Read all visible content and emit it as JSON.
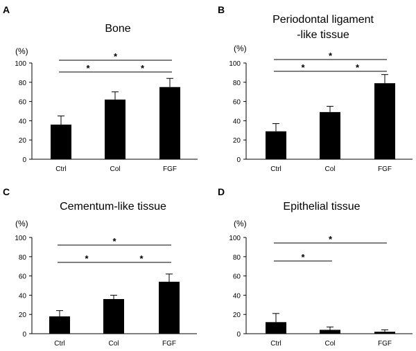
{
  "figure": {
    "panels": [
      {
        "letter": "A",
        "title_lines": [
          "Bone"
        ],
        "unit": "(%)"
      },
      {
        "letter": "B",
        "title_lines": [
          "Periodontal ligament",
          "-like tissue"
        ],
        "unit": "(%)"
      },
      {
        "letter": "C",
        "title_lines": [
          "Cementum-like tissue"
        ],
        "unit": "(%)"
      },
      {
        "letter": "D",
        "title_lines": [
          "Epithelial tissue"
        ],
        "unit": "(%)"
      }
    ]
  },
  "chart_data": [
    {
      "type": "bar",
      "title": "Bone",
      "ylabel": "(%)",
      "categories": [
        "Ctrl",
        "Col",
        "FGF"
      ],
      "values": [
        36,
        62,
        75
      ],
      "errors": [
        9,
        8,
        9
      ],
      "ylim": [
        0,
        100
      ],
      "yticks": [
        "0",
        "20",
        "40",
        "60",
        "80",
        "100"
      ],
      "significance": [
        {
          "from": 0,
          "to": 1,
          "label": "*"
        },
        {
          "from": 1,
          "to": 2,
          "label": "*"
        },
        {
          "from": 0,
          "to": 2,
          "label": "*"
        }
      ],
      "bar_color": "#000000",
      "grid": false
    },
    {
      "type": "bar",
      "title": "Periodontal ligament -like tissue",
      "ylabel": "(%)",
      "categories": [
        "Ctrl",
        "Col",
        "FGF"
      ],
      "values": [
        29,
        49,
        79
      ],
      "errors": [
        8,
        6,
        9
      ],
      "ylim": [
        0,
        100
      ],
      "yticks": [
        "0",
        "20",
        "40",
        "60",
        "80",
        "100"
      ],
      "significance": [
        {
          "from": 0,
          "to": 1,
          "label": "*"
        },
        {
          "from": 1,
          "to": 2,
          "label": "*"
        },
        {
          "from": 0,
          "to": 2,
          "label": "*"
        }
      ],
      "bar_color": "#000000",
      "grid": false
    },
    {
      "type": "bar",
      "title": "Cementum-like tissue",
      "ylabel": "(%)",
      "categories": [
        "Ctrl",
        "Col",
        "FGF"
      ],
      "values": [
        18,
        36,
        54
      ],
      "errors": [
        6,
        4,
        8
      ],
      "ylim": [
        0,
        100
      ],
      "yticks": [
        "0",
        "20",
        "40",
        "60",
        "80",
        "100"
      ],
      "significance": [
        {
          "from": 0,
          "to": 1,
          "label": "*"
        },
        {
          "from": 1,
          "to": 2,
          "label": "*"
        },
        {
          "from": 0,
          "to": 2,
          "label": "*"
        }
      ],
      "bar_color": "#000000",
      "grid": false
    },
    {
      "type": "bar",
      "title": "Epithelial tissue",
      "ylabel": "(%)",
      "categories": [
        "Ctrl",
        "Col",
        "FGF"
      ],
      "values": [
        12,
        4,
        2
      ],
      "errors": [
        9,
        3,
        2
      ],
      "ylim": [
        0,
        100
      ],
      "yticks": [
        "0",
        "20",
        "40",
        "60",
        "80",
        "100"
      ],
      "significance": [
        {
          "from": 0,
          "to": 1,
          "label": "*"
        },
        {
          "from": 0,
          "to": 2,
          "label": "*"
        }
      ],
      "bar_color": "#000000",
      "grid": false
    }
  ]
}
